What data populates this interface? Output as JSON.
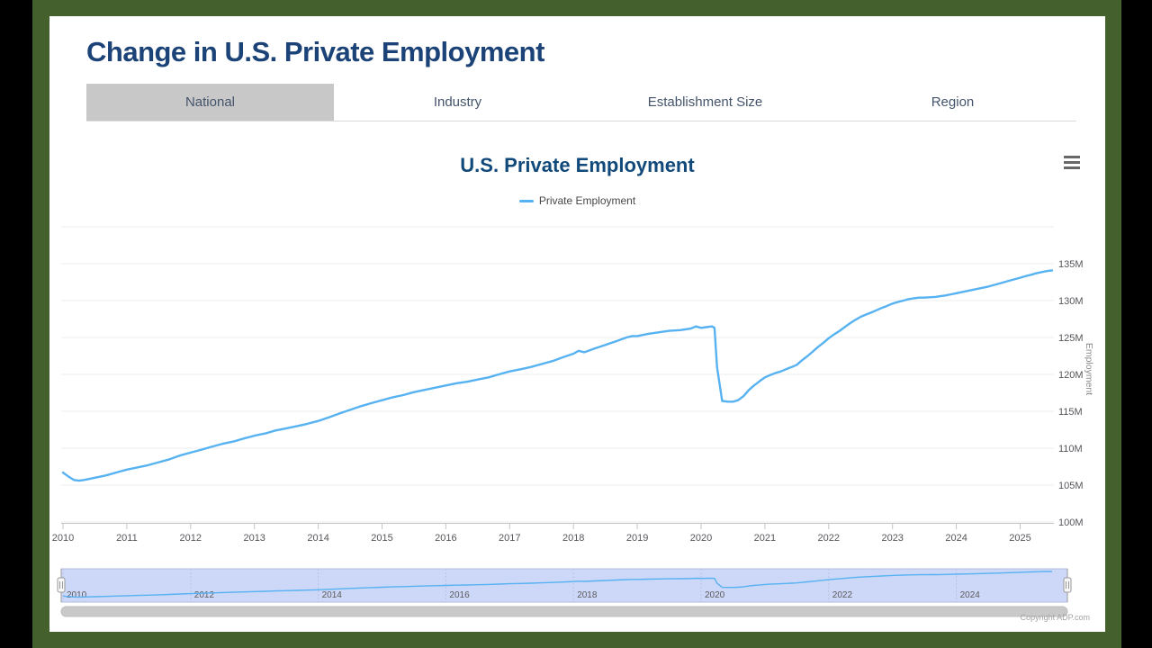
{
  "page": {
    "title": "Change in U.S. Private Employment"
  },
  "tabs": [
    {
      "label": "National",
      "active": true
    },
    {
      "label": "Industry",
      "active": false
    },
    {
      "label": "Establishment Size",
      "active": false
    },
    {
      "label": "Region",
      "active": false
    }
  ],
  "chart": {
    "title": "U.S. Private Employment",
    "legend_label": "Private Employment",
    "y_axis_title": "Employment",
    "copyright": "Copyright ADP.com"
  },
  "colors": {
    "frame_green": "#44602c",
    "outer_black": "#000000",
    "heading_navy": "#1c4377",
    "chart_title_navy": "#11497b",
    "series_blue": "#57b2f1",
    "active_tab_gray": "#c8c8c8",
    "navigator_fill": "#cdd7f8",
    "gridline_gray": "#ececec",
    "axis_label_gray": "#55565a",
    "scrollbar_gray": "#c9c9c9"
  },
  "chart_data": {
    "type": "line",
    "title": "U.S. Private Employment",
    "ylabel": "Employment",
    "xlabel": "",
    "legend_position": "top-center",
    "grid": "horizontal-only",
    "xlim": [
      2009.95,
      2025.55
    ],
    "ylim": [
      100,
      140
    ],
    "x_ticks": [
      2010,
      2011,
      2012,
      2013,
      2014,
      2015,
      2016,
      2017,
      2018,
      2019,
      2020,
      2021,
      2022,
      2023,
      2024,
      2025
    ],
    "y_ticks": [
      100,
      105,
      110,
      115,
      120,
      125,
      130,
      135
    ],
    "y_tick_labels": [
      "100M",
      "105M",
      "110M",
      "115M",
      "120M",
      "125M",
      "130M",
      "135M"
    ],
    "series": [
      {
        "name": "Private Employment",
        "color": "#57b2f1",
        "x": [
          2010.0,
          2010.08,
          2010.17,
          2010.25,
          2010.33,
          2010.5,
          2010.67,
          2010.83,
          2011.0,
          2011.17,
          2011.33,
          2011.5,
          2011.67,
          2011.83,
          2012.0,
          2012.17,
          2012.33,
          2012.5,
          2012.67,
          2012.83,
          2013.0,
          2013.17,
          2013.33,
          2013.5,
          2013.67,
          2013.83,
          2014.0,
          2014.17,
          2014.33,
          2014.5,
          2014.67,
          2014.83,
          2015.0,
          2015.17,
          2015.33,
          2015.5,
          2015.67,
          2015.83,
          2016.0,
          2016.17,
          2016.33,
          2016.5,
          2016.67,
          2016.83,
          2017.0,
          2017.17,
          2017.33,
          2017.5,
          2017.67,
          2017.83,
          2018.0,
          2018.08,
          2018.17,
          2018.33,
          2018.5,
          2018.67,
          2018.83,
          2018.92,
          2019.0,
          2019.17,
          2019.33,
          2019.5,
          2019.67,
          2019.83,
          2019.92,
          2020.0,
          2020.08,
          2020.17,
          2020.21,
          2020.25,
          2020.33,
          2020.42,
          2020.5,
          2020.58,
          2020.67,
          2020.75,
          2020.83,
          2020.92,
          2021.0,
          2021.08,
          2021.17,
          2021.25,
          2021.33,
          2021.42,
          2021.5,
          2021.58,
          2021.67,
          2021.75,
          2021.83,
          2021.92,
          2022.0,
          2022.08,
          2022.17,
          2022.25,
          2022.33,
          2022.42,
          2022.5,
          2022.58,
          2022.67,
          2022.75,
          2022.83,
          2022.92,
          2023.0,
          2023.08,
          2023.17,
          2023.25,
          2023.33,
          2023.42,
          2023.5,
          2023.58,
          2023.67,
          2023.75,
          2023.83,
          2023.92,
          2024.0,
          2024.17,
          2024.33,
          2024.5,
          2024.67,
          2024.83,
          2025.0,
          2025.08,
          2025.17,
          2025.25,
          2025.33,
          2025.42,
          2025.5
        ],
        "values": [
          106.7,
          106.2,
          105.7,
          105.6,
          105.7,
          106.0,
          106.3,
          106.7,
          107.1,
          107.4,
          107.7,
          108.1,
          108.5,
          109.0,
          109.4,
          109.8,
          110.2,
          110.6,
          110.9,
          111.3,
          111.7,
          112.0,
          112.4,
          112.7,
          113.0,
          113.3,
          113.7,
          114.2,
          114.7,
          115.2,
          115.7,
          116.1,
          116.5,
          116.9,
          117.2,
          117.6,
          117.9,
          118.2,
          118.5,
          118.8,
          119.0,
          119.3,
          119.6,
          120.0,
          120.4,
          120.7,
          121.0,
          121.4,
          121.8,
          122.3,
          122.8,
          123.2,
          123.0,
          123.5,
          124.0,
          124.5,
          125.0,
          125.2,
          125.2,
          125.5,
          125.7,
          125.9,
          126.0,
          126.2,
          126.5,
          126.3,
          126.4,
          126.5,
          126.3,
          121.0,
          116.4,
          116.3,
          116.3,
          116.5,
          117.1,
          117.9,
          118.5,
          119.1,
          119.6,
          119.9,
          120.2,
          120.4,
          120.7,
          121.0,
          121.3,
          121.9,
          122.5,
          123.1,
          123.7,
          124.3,
          124.9,
          125.4,
          125.9,
          126.4,
          126.9,
          127.4,
          127.8,
          128.1,
          128.4,
          128.7,
          129.0,
          129.3,
          129.6,
          129.8,
          130.0,
          130.2,
          130.3,
          130.4,
          130.4,
          130.45,
          130.5,
          130.6,
          130.7,
          130.85,
          131.0,
          131.3,
          131.6,
          131.9,
          132.3,
          132.7,
          133.1,
          133.3,
          133.5,
          133.7,
          133.85,
          134.0,
          134.1
        ]
      }
    ],
    "navigator": {
      "x_tick_labels": [
        "2010",
        "2012",
        "2014",
        "2016",
        "2018",
        "2020",
        "2022",
        "2024"
      ],
      "x_tick_values": [
        2010,
        2012,
        2014,
        2016,
        2018,
        2020,
        2022,
        2024
      ],
      "range_selected": "full"
    }
  }
}
